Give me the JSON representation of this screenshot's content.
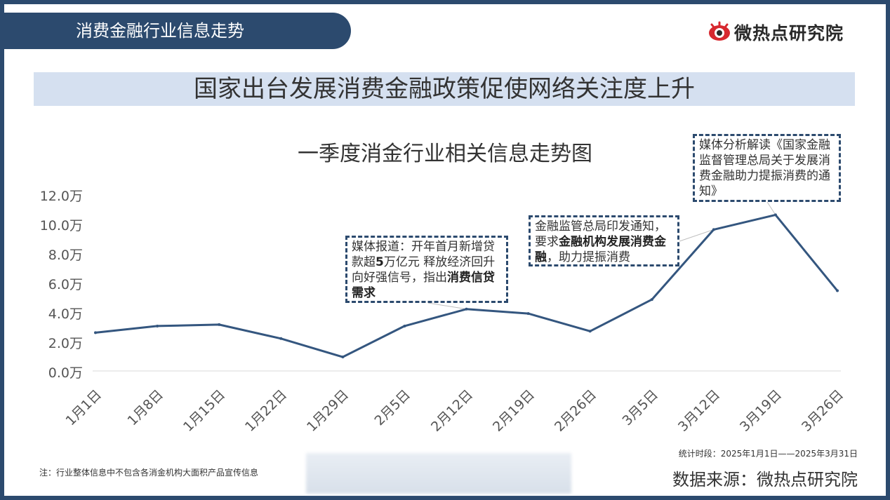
{
  "header": {
    "section_title": "消费金融行业信息走势",
    "brand": "微热点研究院",
    "headline": "国家出台发展消费金融政策促使网络关注度上升"
  },
  "colors": {
    "frame": "#2c4a6e",
    "line": "#34567f",
    "headline_band": "#d5e0f0",
    "logo_red": "#d7282f"
  },
  "chart_data": {
    "type": "line",
    "title": "一季度消金行业相关信息走势图",
    "categories": [
      "1月1日",
      "1月8日",
      "1月15日",
      "1月22日",
      "1月29日",
      "2月5日",
      "2月12日",
      "2月19日",
      "2月26日",
      "3月5日",
      "3月12日",
      "3月19日",
      "3月26日"
    ],
    "values": [
      26000,
      30500,
      31500,
      22000,
      9500,
      30500,
      42000,
      39000,
      27000,
      48500,
      96000,
      106000,
      54500
    ],
    "yticks": [
      "12.0万",
      "10.0万",
      "8.0万",
      "6.0万",
      "4.0万",
      "2.0万",
      "0.0万"
    ],
    "ylim": [
      0,
      120000
    ],
    "grid": false,
    "legend": "none",
    "annotations": [
      {
        "category": "2月12日",
        "parts": [
          {
            "text": "媒体报道：开年首月新增贷",
            "bold": false
          },
          {
            "text": "款超",
            "bold": false
          },
          {
            "text": "5",
            "bold": true
          },
          {
            "text": "万亿元 释放经济回升向好强信号，指出",
            "bold": false
          },
          {
            "text": "消费信贷需求",
            "bold": true
          }
        ]
      },
      {
        "category": "3月12日",
        "parts": [
          {
            "text": "金融监管总局印发通知，要求",
            "bold": false
          },
          {
            "text": "金融机构发展消费金融",
            "bold": true
          },
          {
            "text": "，助力提振消费",
            "bold": false
          }
        ]
      },
      {
        "category": "3月19日",
        "parts": [
          {
            "text": "媒体分析解读《国家金融监督管理总局关于发展消费金融助力提振消费的通知》",
            "bold": false
          }
        ]
      }
    ]
  },
  "footer": {
    "period": "统计时段：2025年1月1日——2025年3月31日",
    "source": "数据来源：微热点研究院",
    "note": "注：行业整体信息中不包含各消金机构大面积产品宣传信息"
  }
}
